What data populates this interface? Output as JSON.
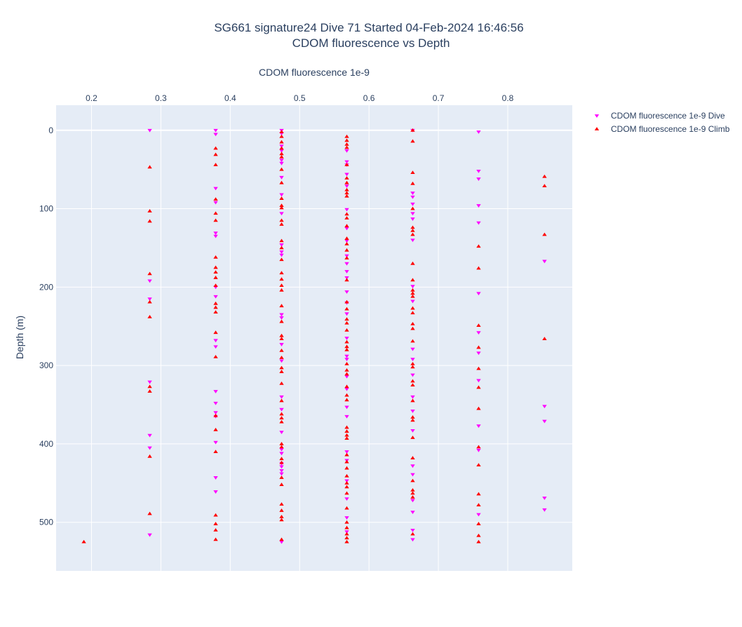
{
  "chart_data": {
    "type": "scatter",
    "title": "SG661 signature24 Dive 71 Started 04-Feb-2024 16:46:56",
    "subtitle": "CDOM fluorescence vs Depth",
    "xlabel": "CDOM fluorescence 1e-9",
    "ylabel": "Depth (m)",
    "xlim": [
      0.149,
      0.893
    ],
    "ylim": [
      -32,
      562
    ],
    "y_reversed": true,
    "x_axis_position": "top",
    "xticks": [
      0.2,
      0.3,
      0.4,
      0.5,
      0.6,
      0.7,
      0.8
    ],
    "xtick_labels": [
      "0.2",
      "0.3",
      "0.4",
      "0.5",
      "0.6",
      "0.7",
      "0.8"
    ],
    "yticks": [
      0,
      100,
      200,
      300,
      400,
      500
    ],
    "ytick_labels": [
      "0",
      "100",
      "200",
      "300",
      "400",
      "500"
    ],
    "grid": true,
    "legend_position": "top-right",
    "series": [
      {
        "name": "CDOM fluorescence 1e-9 Dive",
        "marker": "triangle-down",
        "color": "#ff00ff",
        "points": [
          [
            0.284,
            0
          ],
          [
            0.284,
            192
          ],
          [
            0.284,
            215
          ],
          [
            0.284,
            321
          ],
          [
            0.284,
            389
          ],
          [
            0.284,
            405
          ],
          [
            0.284,
            516
          ],
          [
            0.379,
            0
          ],
          [
            0.379,
            5
          ],
          [
            0.379,
            74
          ],
          [
            0.379,
            92
          ],
          [
            0.379,
            131
          ],
          [
            0.379,
            135
          ],
          [
            0.379,
            200
          ],
          [
            0.379,
            212
          ],
          [
            0.379,
            268
          ],
          [
            0.379,
            276
          ],
          [
            0.379,
            333
          ],
          [
            0.379,
            348
          ],
          [
            0.379,
            360
          ],
          [
            0.379,
            365
          ],
          [
            0.379,
            398
          ],
          [
            0.379,
            443
          ],
          [
            0.379,
            461
          ],
          [
            0.474,
            0
          ],
          [
            0.474,
            4
          ],
          [
            0.474,
            20
          ],
          [
            0.474,
            26
          ],
          [
            0.474,
            38
          ],
          [
            0.474,
            42
          ],
          [
            0.474,
            60
          ],
          [
            0.474,
            82
          ],
          [
            0.474,
            106
          ],
          [
            0.474,
            146
          ],
          [
            0.474,
            155
          ],
          [
            0.474,
            159
          ],
          [
            0.474,
            235
          ],
          [
            0.474,
            239
          ],
          [
            0.474,
            273
          ],
          [
            0.474,
            294
          ],
          [
            0.474,
            340
          ],
          [
            0.474,
            356
          ],
          [
            0.474,
            385
          ],
          [
            0.474,
            407
          ],
          [
            0.474,
            412
          ],
          [
            0.474,
            425
          ],
          [
            0.474,
            429
          ],
          [
            0.474,
            434
          ],
          [
            0.474,
            438
          ],
          [
            0.474,
            525
          ],
          [
            0.568,
            26
          ],
          [
            0.568,
            40
          ],
          [
            0.568,
            44
          ],
          [
            0.568,
            56
          ],
          [
            0.568,
            71
          ],
          [
            0.568,
            101
          ],
          [
            0.568,
            125
          ],
          [
            0.568,
            141
          ],
          [
            0.568,
            160
          ],
          [
            0.568,
            170
          ],
          [
            0.568,
            180
          ],
          [
            0.568,
            188
          ],
          [
            0.568,
            206
          ],
          [
            0.568,
            220
          ],
          [
            0.568,
            234
          ],
          [
            0.568,
            265
          ],
          [
            0.568,
            288
          ],
          [
            0.568,
            292
          ],
          [
            0.568,
            314
          ],
          [
            0.568,
            330
          ],
          [
            0.568,
            353
          ],
          [
            0.568,
            365
          ],
          [
            0.568,
            410
          ],
          [
            0.568,
            421
          ],
          [
            0.568,
            447
          ],
          [
            0.568,
            470
          ],
          [
            0.568,
            494
          ],
          [
            0.568,
            512
          ],
          [
            0.663,
            0
          ],
          [
            0.663,
            80
          ],
          [
            0.663,
            85
          ],
          [
            0.663,
            94
          ],
          [
            0.663,
            106
          ],
          [
            0.663,
            113
          ],
          [
            0.663,
            140
          ],
          [
            0.663,
            199
          ],
          [
            0.663,
            218
          ],
          [
            0.663,
            279
          ],
          [
            0.663,
            292
          ],
          [
            0.663,
            312
          ],
          [
            0.663,
            340
          ],
          [
            0.663,
            358
          ],
          [
            0.663,
            383
          ],
          [
            0.663,
            428
          ],
          [
            0.663,
            439
          ],
          [
            0.663,
            472
          ],
          [
            0.663,
            487
          ],
          [
            0.663,
            510
          ],
          [
            0.663,
            522
          ],
          [
            0.758,
            2
          ],
          [
            0.758,
            52
          ],
          [
            0.758,
            62
          ],
          [
            0.758,
            96
          ],
          [
            0.758,
            118
          ],
          [
            0.758,
            208
          ],
          [
            0.758,
            258
          ],
          [
            0.758,
            284
          ],
          [
            0.758,
            319
          ],
          [
            0.758,
            377
          ],
          [
            0.758,
            408
          ],
          [
            0.758,
            490
          ],
          [
            0.853,
            167
          ],
          [
            0.853,
            352
          ],
          [
            0.853,
            371
          ],
          [
            0.853,
            469
          ],
          [
            0.853,
            484
          ]
        ]
      },
      {
        "name": "CDOM fluorescence 1e-9 Climb",
        "marker": "triangle-up",
        "color": "#ff0000",
        "points": [
          [
            0.189,
            525
          ],
          [
            0.284,
            47
          ],
          [
            0.284,
            103
          ],
          [
            0.284,
            116
          ],
          [
            0.284,
            183
          ],
          [
            0.284,
            219
          ],
          [
            0.284,
            238
          ],
          [
            0.284,
            327
          ],
          [
            0.284,
            333
          ],
          [
            0.284,
            416
          ],
          [
            0.284,
            489
          ],
          [
            0.379,
            23
          ],
          [
            0.379,
            31
          ],
          [
            0.379,
            44
          ],
          [
            0.379,
            88
          ],
          [
            0.379,
            106
          ],
          [
            0.379,
            115
          ],
          [
            0.379,
            162
          ],
          [
            0.379,
            175
          ],
          [
            0.379,
            181
          ],
          [
            0.379,
            188
          ],
          [
            0.379,
            198
          ],
          [
            0.379,
            221
          ],
          [
            0.379,
            226
          ],
          [
            0.379,
            232
          ],
          [
            0.379,
            258
          ],
          [
            0.379,
            289
          ],
          [
            0.379,
            364
          ],
          [
            0.379,
            382
          ],
          [
            0.379,
            410
          ],
          [
            0.379,
            491
          ],
          [
            0.379,
            502
          ],
          [
            0.379,
            510
          ],
          [
            0.379,
            522
          ],
          [
            0.474,
            2
          ],
          [
            0.474,
            8
          ],
          [
            0.474,
            15
          ],
          [
            0.474,
            23
          ],
          [
            0.474,
            30
          ],
          [
            0.474,
            34
          ],
          [
            0.474,
            50
          ],
          [
            0.474,
            67
          ],
          [
            0.474,
            87
          ],
          [
            0.474,
            96
          ],
          [
            0.474,
            99
          ],
          [
            0.474,
            115
          ],
          [
            0.474,
            120
          ],
          [
            0.474,
            141
          ],
          [
            0.474,
            150
          ],
          [
            0.474,
            165
          ],
          [
            0.474,
            182
          ],
          [
            0.474,
            190
          ],
          [
            0.474,
            198
          ],
          [
            0.474,
            204
          ],
          [
            0.474,
            224
          ],
          [
            0.474,
            244
          ],
          [
            0.474,
            262
          ],
          [
            0.474,
            266
          ],
          [
            0.474,
            281
          ],
          [
            0.474,
            290
          ],
          [
            0.474,
            303
          ],
          [
            0.474,
            308
          ],
          [
            0.474,
            323
          ],
          [
            0.474,
            345
          ],
          [
            0.474,
            362
          ],
          [
            0.474,
            367
          ],
          [
            0.474,
            372
          ],
          [
            0.474,
            400
          ],
          [
            0.474,
            404
          ],
          [
            0.474,
            419
          ],
          [
            0.474,
            424
          ],
          [
            0.474,
            443
          ],
          [
            0.474,
            452
          ],
          [
            0.474,
            477
          ],
          [
            0.474,
            485
          ],
          [
            0.474,
            493
          ],
          [
            0.474,
            497
          ],
          [
            0.474,
            522
          ],
          [
            0.568,
            8
          ],
          [
            0.568,
            13
          ],
          [
            0.568,
            18
          ],
          [
            0.568,
            22
          ],
          [
            0.568,
            44
          ],
          [
            0.568,
            61
          ],
          [
            0.568,
            67
          ],
          [
            0.568,
            76
          ],
          [
            0.568,
            80
          ],
          [
            0.568,
            84
          ],
          [
            0.568,
            107
          ],
          [
            0.568,
            112
          ],
          [
            0.568,
            122
          ],
          [
            0.568,
            138
          ],
          [
            0.568,
            145
          ],
          [
            0.568,
            153
          ],
          [
            0.568,
            163
          ],
          [
            0.568,
            191
          ],
          [
            0.568,
            219
          ],
          [
            0.568,
            228
          ],
          [
            0.568,
            241
          ],
          [
            0.568,
            246
          ],
          [
            0.568,
            255
          ],
          [
            0.568,
            270
          ],
          [
            0.568,
            276
          ],
          [
            0.568,
            280
          ],
          [
            0.568,
            298
          ],
          [
            0.568,
            306
          ],
          [
            0.568,
            311
          ],
          [
            0.568,
            327
          ],
          [
            0.568,
            338
          ],
          [
            0.568,
            344
          ],
          [
            0.568,
            379
          ],
          [
            0.568,
            384
          ],
          [
            0.568,
            389
          ],
          [
            0.568,
            393
          ],
          [
            0.568,
            414
          ],
          [
            0.568,
            423
          ],
          [
            0.568,
            431
          ],
          [
            0.568,
            441
          ],
          [
            0.568,
            450
          ],
          [
            0.568,
            455
          ],
          [
            0.568,
            463
          ],
          [
            0.568,
            482
          ],
          [
            0.568,
            500
          ],
          [
            0.568,
            507
          ],
          [
            0.568,
            515
          ],
          [
            0.568,
            520
          ],
          [
            0.568,
            525
          ],
          [
            0.663,
            0
          ],
          [
            0.663,
            14
          ],
          [
            0.663,
            54
          ],
          [
            0.663,
            68
          ],
          [
            0.663,
            100
          ],
          [
            0.663,
            124
          ],
          [
            0.663,
            128
          ],
          [
            0.663,
            133
          ],
          [
            0.663,
            170
          ],
          [
            0.663,
            191
          ],
          [
            0.663,
            204
          ],
          [
            0.663,
            208
          ],
          [
            0.663,
            212
          ],
          [
            0.663,
            227
          ],
          [
            0.663,
            233
          ],
          [
            0.663,
            247
          ],
          [
            0.663,
            253
          ],
          [
            0.663,
            269
          ],
          [
            0.663,
            298
          ],
          [
            0.663,
            302
          ],
          [
            0.663,
            320
          ],
          [
            0.663,
            325
          ],
          [
            0.663,
            345
          ],
          [
            0.663,
            366
          ],
          [
            0.663,
            370
          ],
          [
            0.663,
            392
          ],
          [
            0.663,
            418
          ],
          [
            0.663,
            447
          ],
          [
            0.663,
            459
          ],
          [
            0.663,
            463
          ],
          [
            0.663,
            468
          ],
          [
            0.663,
            515
          ],
          [
            0.758,
            148
          ],
          [
            0.758,
            176
          ],
          [
            0.758,
            249
          ],
          [
            0.758,
            277
          ],
          [
            0.758,
            304
          ],
          [
            0.758,
            328
          ],
          [
            0.758,
            355
          ],
          [
            0.758,
            404
          ],
          [
            0.758,
            427
          ],
          [
            0.758,
            464
          ],
          [
            0.758,
            478
          ],
          [
            0.758,
            502
          ],
          [
            0.758,
            517
          ],
          [
            0.758,
            525
          ],
          [
            0.853,
            59
          ],
          [
            0.853,
            71
          ],
          [
            0.853,
            133
          ],
          [
            0.853,
            266
          ]
        ]
      }
    ]
  }
}
